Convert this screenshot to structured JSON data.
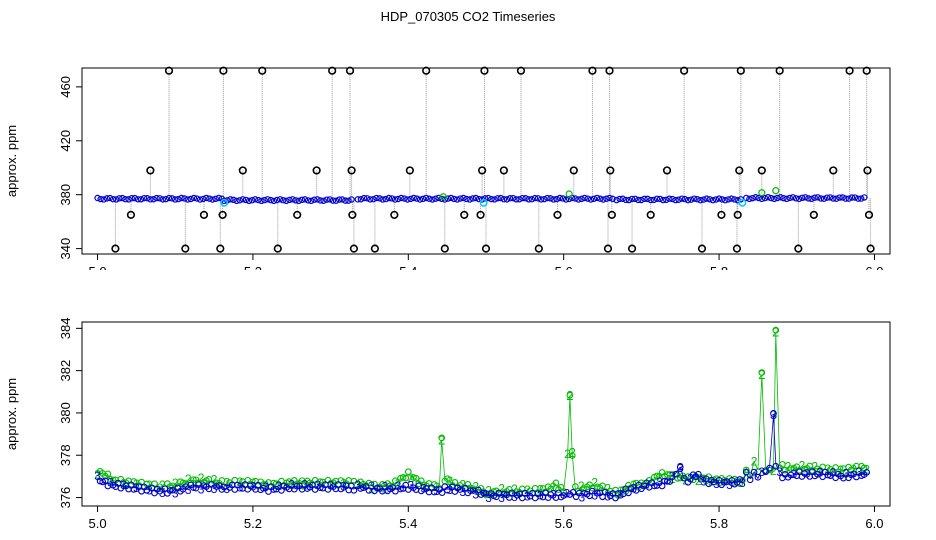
{
  "figure": {
    "title": "HDP_070305  CO2 Timeseries"
  },
  "colors": {
    "outlier": "#000000",
    "series_blue": "#0000cc",
    "series_green": "#00bb00",
    "series_cyan": "#00ccff",
    "drop_lines": "#999999"
  },
  "chart_data": [
    {
      "type": "scatter",
      "ylabel": "approx. ppm",
      "xlabel": "",
      "xlim": [
        5.0,
        6.0
      ],
      "ylim": [
        336,
        474
      ],
      "x_ticks": [
        "5.0",
        "5.2",
        "5.4",
        "5.6",
        "5.8",
        "6.0"
      ],
      "y_ticks": [
        "340",
        "380",
        "420",
        "460"
      ],
      "baseline_series": {
        "name": "",
        "segments": [
          {
            "x_start": 5.0,
            "x_end": 5.163,
            "y": 377
          },
          {
            "x_start": 5.163,
            "x_end": 5.33,
            "y": 376
          },
          {
            "x_start": 5.335,
            "x_end": 5.665,
            "y": 377
          },
          {
            "x_start": 5.668,
            "x_end": 5.83,
            "y": 376.5
          },
          {
            "x_start": 5.835,
            "x_end": 5.99,
            "y": 377.5
          }
        ]
      },
      "outliers": [
        {
          "x": 5.023,
          "y": 340
        },
        {
          "x": 5.043,
          "y": 365
        },
        {
          "x": 5.068,
          "y": 398
        },
        {
          "x": 5.092,
          "y": 472
        },
        {
          "x": 5.113,
          "y": 340
        },
        {
          "x": 5.137,
          "y": 365
        },
        {
          "x": 5.158,
          "y": 340
        },
        {
          "x": 5.162,
          "y": 472
        },
        {
          "x": 5.161,
          "y": 365
        },
        {
          "x": 5.187,
          "y": 398
        },
        {
          "x": 5.212,
          "y": 472
        },
        {
          "x": 5.232,
          "y": 340
        },
        {
          "x": 5.257,
          "y": 365
        },
        {
          "x": 5.282,
          "y": 398
        },
        {
          "x": 5.302,
          "y": 472
        },
        {
          "x": 5.325,
          "y": 472
        },
        {
          "x": 5.327,
          "y": 398
        },
        {
          "x": 5.328,
          "y": 365
        },
        {
          "x": 5.33,
          "y": 340
        },
        {
          "x": 5.357,
          "y": 340
        },
        {
          "x": 5.382,
          "y": 365
        },
        {
          "x": 5.402,
          "y": 398
        },
        {
          "x": 5.423,
          "y": 472
        },
        {
          "x": 5.447,
          "y": 340
        },
        {
          "x": 5.472,
          "y": 365
        },
        {
          "x": 5.493,
          "y": 365
        },
        {
          "x": 5.495,
          "y": 398
        },
        {
          "x": 5.498,
          "y": 472
        },
        {
          "x": 5.5,
          "y": 340
        },
        {
          "x": 5.523,
          "y": 398
        },
        {
          "x": 5.545,
          "y": 472
        },
        {
          "x": 5.568,
          "y": 340
        },
        {
          "x": 5.592,
          "y": 365
        },
        {
          "x": 5.613,
          "y": 398
        },
        {
          "x": 5.637,
          "y": 472
        },
        {
          "x": 5.657,
          "y": 340
        },
        {
          "x": 5.659,
          "y": 472
        },
        {
          "x": 5.66,
          "y": 398
        },
        {
          "x": 5.662,
          "y": 365
        },
        {
          "x": 5.688,
          "y": 340
        },
        {
          "x": 5.712,
          "y": 365
        },
        {
          "x": 5.733,
          "y": 398
        },
        {
          "x": 5.755,
          "y": 472
        },
        {
          "x": 5.778,
          "y": 340
        },
        {
          "x": 5.803,
          "y": 365
        },
        {
          "x": 5.823,
          "y": 340
        },
        {
          "x": 5.824,
          "y": 365
        },
        {
          "x": 5.826,
          "y": 398
        },
        {
          "x": 5.828,
          "y": 472
        },
        {
          "x": 5.855,
          "y": 398
        },
        {
          "x": 5.878,
          "y": 472
        },
        {
          "x": 5.902,
          "y": 340
        },
        {
          "x": 5.922,
          "y": 365
        },
        {
          "x": 5.947,
          "y": 398
        },
        {
          "x": 5.968,
          "y": 472
        },
        {
          "x": 5.99,
          "y": 472
        },
        {
          "x": 5.991,
          "y": 398
        },
        {
          "x": 5.993,
          "y": 365
        },
        {
          "x": 5.995,
          "y": 340
        }
      ],
      "cyan_points": [
        {
          "x": 5.163,
          "y": 374
        },
        {
          "x": 5.497,
          "y": 374
        },
        {
          "x": 5.83,
          "y": 374
        }
      ],
      "green_points": [
        {
          "x": 5.445,
          "y": 378.5
        },
        {
          "x": 5.607,
          "y": 380.5
        },
        {
          "x": 5.855,
          "y": 381.5
        },
        {
          "x": 5.873,
          "y": 383
        }
      ]
    },
    {
      "type": "line",
      "ylabel": "approx. ppm",
      "xlabel": "",
      "xlim": [
        5.0,
        6.0
      ],
      "ylim": [
        375.6,
        384.3
      ],
      "x_ticks": [
        "5.0",
        "5.2",
        "5.4",
        "5.6",
        "5.8",
        "6.0"
      ],
      "y_ticks": [
        "376",
        "378",
        "380",
        "382",
        "384"
      ],
      "marker_labels": {
        "blue": "3",
        "green": "2"
      },
      "series": [
        {
          "name": "",
          "color_key": "series_green",
          "marker": "2",
          "points": [
            [
              5.0,
              377.2
            ],
            [
              5.01,
              377.1
            ],
            [
              5.02,
              376.8
            ],
            [
              5.04,
              376.7
            ],
            [
              5.06,
              376.6
            ],
            [
              5.08,
              376.5
            ],
            [
              5.1,
              376.6
            ],
            [
              5.11,
              376.7
            ],
            [
              5.12,
              376.8
            ],
            [
              5.14,
              376.8
            ],
            [
              5.16,
              376.7
            ],
            [
              5.163,
              376.6
            ],
            [
              5.17,
              376.7
            ],
            [
              5.2,
              376.7
            ],
            [
              5.22,
              376.6
            ],
            [
              5.25,
              376.7
            ],
            [
              5.27,
              376.7
            ],
            [
              5.3,
              376.7
            ],
            [
              5.32,
              376.7
            ],
            [
              5.33,
              376.7
            ],
            [
              5.335,
              376.7
            ],
            [
              5.36,
              376.5
            ],
            [
              5.38,
              376.6
            ],
            [
              5.4,
              377.1
            ],
            [
              5.42,
              376.6
            ],
            [
              5.44,
              376.5
            ],
            [
              5.443,
              378.7
            ],
            [
              5.447,
              376.9
            ],
            [
              5.46,
              376.6
            ],
            [
              5.48,
              376.5
            ],
            [
              5.497,
              376.3
            ],
            [
              5.5,
              376.2
            ],
            [
              5.52,
              376.3
            ],
            [
              5.54,
              376.3
            ],
            [
              5.56,
              376.3
            ],
            [
              5.58,
              376.4
            ],
            [
              5.59,
              376.6
            ],
            [
              5.6,
              376.3
            ],
            [
              5.605,
              378.0
            ],
            [
              5.608,
              380.8
            ],
            [
              5.611,
              378.1
            ],
            [
              5.615,
              376.4
            ],
            [
              5.63,
              376.5
            ],
            [
              5.64,
              376.6
            ],
            [
              5.66,
              376.3
            ],
            [
              5.67,
              376.2
            ],
            [
              5.68,
              376.4
            ],
            [
              5.69,
              376.6
            ],
            [
              5.7,
              376.6
            ],
            [
              5.71,
              376.7
            ],
            [
              5.72,
              377.0
            ],
            [
              5.73,
              377.1
            ],
            [
              5.74,
              377.0
            ],
            [
              5.76,
              376.9
            ],
            [
              5.78,
              376.9
            ],
            [
              5.8,
              376.8
            ],
            [
              5.82,
              376.8
            ],
            [
              5.83,
              376.7
            ],
            [
              5.835,
              377.4
            ],
            [
              5.84,
              377.0
            ],
            [
              5.845,
              377.7
            ],
            [
              5.85,
              377.3
            ],
            [
              5.855,
              381.8
            ],
            [
              5.86,
              377.4
            ],
            [
              5.865,
              377.2
            ],
            [
              5.87,
              377.3
            ],
            [
              5.873,
              383.8
            ],
            [
              5.878,
              377.5
            ],
            [
              5.885,
              377.4
            ],
            [
              5.9,
              377.4
            ],
            [
              5.92,
              377.4
            ],
            [
              5.94,
              377.3
            ],
            [
              5.96,
              377.3
            ],
            [
              5.98,
              377.4
            ],
            [
              5.99,
              377.4
            ]
          ]
        },
        {
          "name": "",
          "color_key": "series_blue",
          "marker": "3",
          "points": [
            [
              5.0,
              376.9
            ],
            [
              5.01,
              376.7
            ],
            [
              5.02,
              376.6
            ],
            [
              5.04,
              376.5
            ],
            [
              5.06,
              376.4
            ],
            [
              5.08,
              376.3
            ],
            [
              5.1,
              376.3
            ],
            [
              5.11,
              376.4
            ],
            [
              5.12,
              376.5
            ],
            [
              5.14,
              376.5
            ],
            [
              5.16,
              376.5
            ],
            [
              5.163,
              376.4
            ],
            [
              5.17,
              376.5
            ],
            [
              5.2,
              376.5
            ],
            [
              5.22,
              376.4
            ],
            [
              5.25,
              376.5
            ],
            [
              5.27,
              376.5
            ],
            [
              5.3,
              376.5
            ],
            [
              5.32,
              376.5
            ],
            [
              5.33,
              376.4
            ],
            [
              5.335,
              376.5
            ],
            [
              5.36,
              376.4
            ],
            [
              5.38,
              376.4
            ],
            [
              5.4,
              376.5
            ],
            [
              5.42,
              376.4
            ],
            [
              5.44,
              376.3
            ],
            [
              5.447,
              376.4
            ],
            [
              5.46,
              376.4
            ],
            [
              5.48,
              376.3
            ],
            [
              5.497,
              376.2
            ],
            [
              5.5,
              376.1
            ],
            [
              5.52,
              376.1
            ],
            [
              5.54,
              376.1
            ],
            [
              5.56,
              376.1
            ],
            [
              5.58,
              376.1
            ],
            [
              5.6,
              376.1
            ],
            [
              5.608,
              376.2
            ],
            [
              5.62,
              376.1
            ],
            [
              5.64,
              376.2
            ],
            [
              5.66,
              376.1
            ],
            [
              5.67,
              376.1
            ],
            [
              5.68,
              376.3
            ],
            [
              5.69,
              376.4
            ],
            [
              5.7,
              376.5
            ],
            [
              5.71,
              376.6
            ],
            [
              5.72,
              376.6
            ],
            [
              5.73,
              376.7
            ],
            [
              5.74,
              376.9
            ],
            [
              5.745,
              377.2
            ],
            [
              5.75,
              377.4
            ],
            [
              5.755,
              376.9
            ],
            [
              5.76,
              376.8
            ],
            [
              5.77,
              377.1
            ],
            [
              5.78,
              376.8
            ],
            [
              5.8,
              376.7
            ],
            [
              5.82,
              376.7
            ],
            [
              5.83,
              376.8
            ],
            [
              5.835,
              377.1
            ],
            [
              5.84,
              376.9
            ],
            [
              5.845,
              377.2
            ],
            [
              5.85,
              376.9
            ],
            [
              5.855,
              377.3
            ],
            [
              5.86,
              377.1
            ],
            [
              5.865,
              377.5
            ],
            [
              5.87,
              379.9
            ],
            [
              5.873,
              377.6
            ],
            [
              5.878,
              377.1
            ],
            [
              5.885,
              377.0
            ],
            [
              5.9,
              377.1
            ],
            [
              5.92,
              377.1
            ],
            [
              5.94,
              377.1
            ],
            [
              5.96,
              377.0
            ],
            [
              5.98,
              377.1
            ],
            [
              5.99,
              377.1
            ]
          ]
        }
      ]
    }
  ]
}
